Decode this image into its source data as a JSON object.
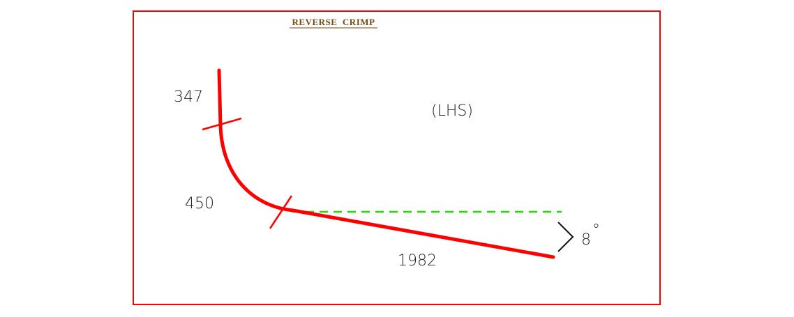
{
  "title": "REVERSE  CRIMP",
  "side_label": "(LHS)",
  "dimensions": {
    "top_segment": "347",
    "bend_segment": "450",
    "bottom_segment": "1982"
  },
  "angle": {
    "value": "8",
    "unit": "°"
  },
  "colors": {
    "frame": "#ff0000",
    "shape": "#ff0000",
    "reference_line": "#22dd00",
    "title": "#7a4a12",
    "text": "#222222"
  }
}
